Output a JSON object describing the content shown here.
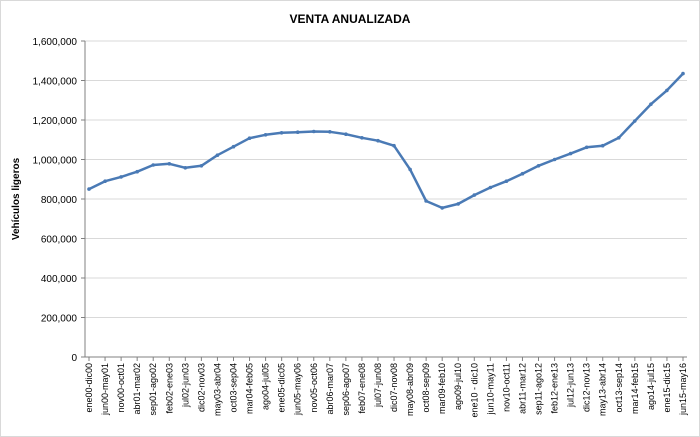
{
  "chart_data": {
    "type": "line",
    "title": "VENTA ANUALIZADA",
    "xlabel": "",
    "ylabel": "Vehículos ligeros",
    "ylim": [
      0,
      1600000
    ],
    "yticks": [
      "0",
      "200,000",
      "400,000",
      "600,000",
      "800,000",
      "1,000,000",
      "1,200,000",
      "1,400,000",
      "1,600,000"
    ],
    "ytick_values": [
      0,
      200000,
      400000,
      600000,
      800000,
      1000000,
      1200000,
      1400000,
      1600000
    ],
    "grid": true,
    "legend": "none",
    "series_color": "#4a7ab5",
    "categories": [
      "ene00-dic00",
      "jun00-may01",
      "nov00-oct01",
      "abr01-mar02",
      "sep01-ago02",
      "feb02-ene03",
      "jul02-jun03",
      "dic02-nov03",
      "may03-abr04",
      "oct03-sep04",
      "mar04-feb05",
      "ago04-jul05",
      "ene05-dic05",
      "jun05-may06",
      "nov05-oct06",
      "abr06-mar07",
      "sep06-ago07",
      "feb07-ene08",
      "jul07-jun08",
      "dic07-nov08",
      "may08-abr09",
      "oct08-sep09",
      "mar09-feb10",
      "ago09-jul10",
      "ene10 - dic10",
      "jun10-may11",
      "nov10-oct11",
      "abr11-mar12",
      "sep11-ago12",
      "feb12-ene13",
      "jul12-jun13",
      "dic12-nov13",
      "may13-abr14",
      "oct13-sep14",
      "mar14-feb15",
      "ago14-jul15",
      "ene15-dic15",
      "jun15-may16"
    ],
    "values": [
      850000,
      890000,
      912000,
      938000,
      972000,
      978000,
      958000,
      968000,
      1022000,
      1065000,
      1108000,
      1125000,
      1135000,
      1138000,
      1142000,
      1140000,
      1128000,
      1110000,
      1095000,
      1070000,
      950000,
      790000,
      755000,
      775000,
      820000,
      858000,
      890000,
      928000,
      968000,
      1000000,
      1030000,
      1062000,
      1070000,
      1110000,
      1195000,
      1280000,
      1350000,
      1435000
    ]
  }
}
